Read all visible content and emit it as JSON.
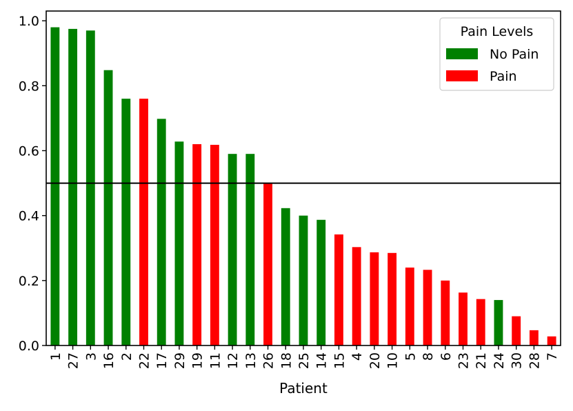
{
  "chart_data": {
    "type": "bar",
    "xlabel": "Patient",
    "ylabel": "",
    "ylim": [
      0,
      1.03
    ],
    "yticks": [
      "0.0",
      "0.2",
      "0.4",
      "0.6",
      "0.8",
      "1.0"
    ],
    "threshold": 0.5,
    "grid": false,
    "legend": {
      "title": "Pain Levels",
      "placement": "top-right",
      "entries": [
        {
          "label": "No Pain",
          "color": "#008000",
          "key": "no_pain"
        },
        {
          "label": "Pain",
          "color": "#ff0000",
          "key": "pain"
        }
      ]
    },
    "bars": [
      {
        "patient": "1",
        "value": 0.98,
        "class": "no_pain"
      },
      {
        "patient": "27",
        "value": 0.975,
        "class": "no_pain"
      },
      {
        "patient": "3",
        "value": 0.97,
        "class": "no_pain"
      },
      {
        "patient": "16",
        "value": 0.848,
        "class": "no_pain"
      },
      {
        "patient": "2",
        "value": 0.76,
        "class": "no_pain"
      },
      {
        "patient": "22",
        "value": 0.76,
        "class": "pain"
      },
      {
        "patient": "17",
        "value": 0.698,
        "class": "no_pain"
      },
      {
        "patient": "29",
        "value": 0.628,
        "class": "no_pain"
      },
      {
        "patient": "19",
        "value": 0.62,
        "class": "pain"
      },
      {
        "patient": "11",
        "value": 0.618,
        "class": "pain"
      },
      {
        "patient": "12",
        "value": 0.59,
        "class": "no_pain"
      },
      {
        "patient": "13",
        "value": 0.59,
        "class": "no_pain"
      },
      {
        "patient": "26",
        "value": 0.5,
        "class": "pain"
      },
      {
        "patient": "18",
        "value": 0.423,
        "class": "no_pain"
      },
      {
        "patient": "25",
        "value": 0.4,
        "class": "no_pain"
      },
      {
        "patient": "14",
        "value": 0.387,
        "class": "no_pain"
      },
      {
        "patient": "15",
        "value": 0.342,
        "class": "pain"
      },
      {
        "patient": "4",
        "value": 0.303,
        "class": "pain"
      },
      {
        "patient": "20",
        "value": 0.287,
        "class": "pain"
      },
      {
        "patient": "10",
        "value": 0.285,
        "class": "pain"
      },
      {
        "patient": "5",
        "value": 0.24,
        "class": "pain"
      },
      {
        "patient": "8",
        "value": 0.233,
        "class": "pain"
      },
      {
        "patient": "6",
        "value": 0.2,
        "class": "pain"
      },
      {
        "patient": "23",
        "value": 0.163,
        "class": "pain"
      },
      {
        "patient": "21",
        "value": 0.143,
        "class": "pain"
      },
      {
        "patient": "24",
        "value": 0.14,
        "class": "no_pain"
      },
      {
        "patient": "30",
        "value": 0.09,
        "class": "pain"
      },
      {
        "patient": "28",
        "value": 0.047,
        "class": "pain"
      },
      {
        "patient": "7",
        "value": 0.028,
        "class": "pain"
      }
    ]
  }
}
